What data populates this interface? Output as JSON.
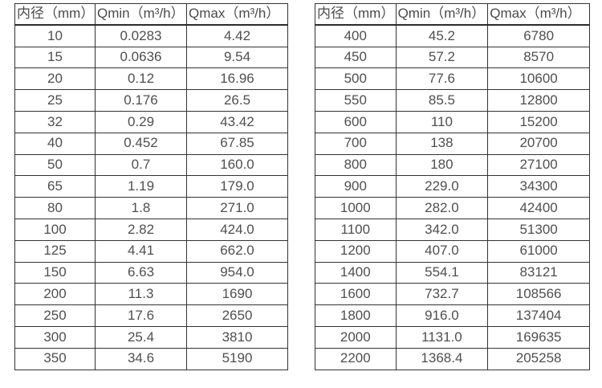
{
  "colors": {
    "border": "#333333",
    "text": "#4f4f4f",
    "background": "#ffffff"
  },
  "tables": [
    {
      "name": "flow-range-table-small-diameters",
      "headers": [
        "内径（mm）",
        "Qmin（m³/h）",
        "Qmax（m³/h）"
      ],
      "rows": [
        [
          "10",
          "0.0283",
          "4.42"
        ],
        [
          "15",
          "0.0636",
          "9.54"
        ],
        [
          "20",
          "0.12",
          "16.96"
        ],
        [
          "25",
          "0.176",
          "26.5"
        ],
        [
          "32",
          "0.29",
          "43.42"
        ],
        [
          "40",
          "0.452",
          "67.85"
        ],
        [
          "50",
          "0.7",
          "160.0"
        ],
        [
          "65",
          "1.19",
          "179.0"
        ],
        [
          "80",
          "1.8",
          "271.0"
        ],
        [
          "100",
          "2.82",
          "424.0"
        ],
        [
          "125",
          "4.41",
          "662.0"
        ],
        [
          "150",
          "6.63",
          "954.0"
        ],
        [
          "200",
          "11.3",
          "1690"
        ],
        [
          "250",
          "17.6",
          "2650"
        ],
        [
          "300",
          "25.4",
          "3810"
        ],
        [
          "350",
          "34.6",
          "5190"
        ]
      ]
    },
    {
      "name": "flow-range-table-large-diameters",
      "headers": [
        "内径（mm）",
        "Qmin（m³/h）",
        "Qmax（m³/h）"
      ],
      "rows": [
        [
          "400",
          "45.2",
          "6780"
        ],
        [
          "450",
          "57.2",
          "8570"
        ],
        [
          "500",
          "77.6",
          "10600"
        ],
        [
          "550",
          "85.5",
          "12800"
        ],
        [
          "600",
          "110",
          "15200"
        ],
        [
          "700",
          "138",
          "20700"
        ],
        [
          "800",
          "180",
          "27100"
        ],
        [
          "900",
          "229.0",
          "34300"
        ],
        [
          "1000",
          "282.0",
          "42400"
        ],
        [
          "1100",
          "342.0",
          "51300"
        ],
        [
          "1200",
          "407.0",
          "61000"
        ],
        [
          "1400",
          "554.1",
          "83121"
        ],
        [
          "1600",
          "732.7",
          "108566"
        ],
        [
          "1800",
          "916.0",
          "137404"
        ],
        [
          "2000",
          "1131.0",
          "169635"
        ],
        [
          "2200",
          "1368.4",
          "205258"
        ]
      ]
    }
  ]
}
